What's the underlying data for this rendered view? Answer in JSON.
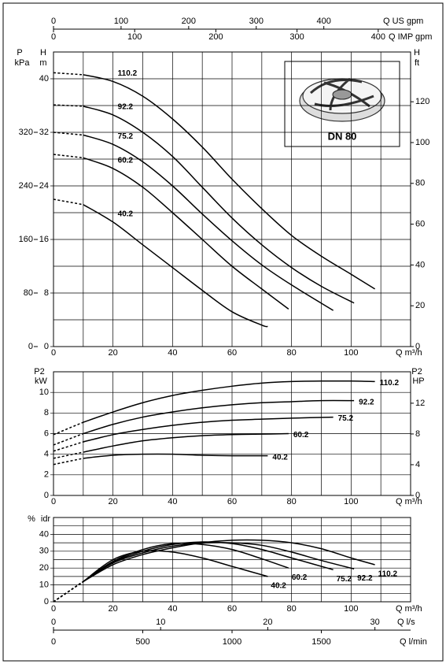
{
  "chart_data": [
    {
      "type": "line",
      "xlabel": "Q m³/h",
      "xlim": [
        0,
        120
      ],
      "xticks": [
        0,
        20,
        40,
        60,
        80,
        100
      ],
      "xminor": [
        10,
        30,
        50,
        70,
        90,
        110
      ],
      "x2label": "Q US gpm",
      "x2lim": [
        0,
        528.4
      ],
      "x2ticks": [
        0,
        100,
        200,
        300,
        400
      ],
      "x3label": "Q IMP gpm",
      "x3lim": [
        0,
        439.9
      ],
      "x3ticks": [
        0,
        100,
        200,
        300,
        400
      ],
      "ylabel": {
        "symbol": "H",
        "unit": "m"
      },
      "ylim": [
        0,
        44
      ],
      "yticks": [
        0,
        8,
        16,
        24,
        32,
        40
      ],
      "yminor": [
        4,
        12,
        20,
        28,
        36
      ],
      "y2label": {
        "symbol": "H",
        "unit": "ft"
      },
      "y2lim": [
        0,
        144.4
      ],
      "y2ticks": [
        0,
        20,
        40,
        60,
        80,
        100,
        120
      ],
      "y3label": {
        "symbol": "P",
        "unit": "kPa"
      },
      "y3lim": [
        0,
        440
      ],
      "y3ticks": [
        0,
        80,
        160,
        240,
        320
      ],
      "dashed_to": 10,
      "color": "#000000",
      "series": [
        {
          "name": "110.2",
          "x": [
            0,
            10,
            20,
            30,
            40,
            50,
            60,
            70,
            80,
            90,
            100,
            108
          ],
          "values": [
            40.9,
            40.6,
            39.6,
            37.4,
            34,
            29.8,
            25,
            20.6,
            16.6,
            13.5,
            10.8,
            8.6
          ]
        },
        {
          "name": "92.2",
          "x": [
            0,
            10,
            20,
            30,
            40,
            50,
            60,
            70,
            80,
            90,
            101
          ],
          "values": [
            36.1,
            35.9,
            34.6,
            32,
            28.4,
            23.8,
            19.2,
            15.2,
            11.8,
            9,
            6.5
          ]
        },
        {
          "name": "75.2",
          "x": [
            0,
            10,
            20,
            30,
            40,
            50,
            60,
            70,
            80,
            94
          ],
          "values": [
            32,
            31.6,
            30.2,
            27.6,
            24,
            19.8,
            15.8,
            12.2,
            9.2,
            5.4
          ]
        },
        {
          "name": "60.2",
          "x": [
            0,
            10,
            20,
            30,
            40,
            50,
            60,
            70,
            79
          ],
          "values": [
            28.7,
            28.2,
            26.6,
            23.8,
            20,
            16,
            12,
            8.6,
            5.6
          ]
        },
        {
          "name": "40.2",
          "x": [
            0,
            10,
            20,
            30,
            40,
            50,
            60,
            70,
            72
          ],
          "values": [
            22,
            21.2,
            18.6,
            15.2,
            11.8,
            8.4,
            5.2,
            3.2,
            3.0
          ]
        }
      ]
    },
    {
      "type": "line",
      "xlabel": "Q m³/h",
      "xlim": [
        0,
        120
      ],
      "xticks": [
        0,
        20,
        40,
        60,
        80,
        100
      ],
      "xminor": [
        10,
        30,
        50,
        70,
        90,
        110
      ],
      "ylabel": {
        "symbol": "P2",
        "unit": "kW"
      },
      "ylim": [
        0,
        12
      ],
      "yticks": [
        0,
        2,
        4,
        6,
        8,
        10
      ],
      "y2label": {
        "symbol": "P2",
        "unit": "HP"
      },
      "y2lim": [
        0,
        16.09
      ],
      "y2ticks": [
        0,
        4,
        8,
        12
      ],
      "dashed_to": 10,
      "color": "#000000",
      "series": [
        {
          "name": "110.2",
          "x": [
            0,
            10,
            20,
            30,
            40,
            50,
            60,
            70,
            80,
            90,
            100,
            108
          ],
          "values": [
            5.9,
            7.1,
            8.1,
            9,
            9.7,
            10.2,
            10.6,
            10.9,
            11.05,
            11.1,
            11.1,
            11.05
          ]
        },
        {
          "name": "92.2",
          "x": [
            0,
            10,
            20,
            30,
            40,
            50,
            60,
            70,
            80,
            90,
            101
          ],
          "values": [
            4.9,
            6,
            6.9,
            7.6,
            8.1,
            8.5,
            8.8,
            9,
            9.1,
            9.2,
            9.2
          ]
        },
        {
          "name": "75.2",
          "x": [
            0,
            10,
            20,
            30,
            40,
            50,
            60,
            70,
            80,
            94
          ],
          "values": [
            4.3,
            5.2,
            5.9,
            6.4,
            6.8,
            7.1,
            7.3,
            7.4,
            7.5,
            7.6
          ]
        },
        {
          "name": "60.2",
          "x": [
            0,
            10,
            20,
            30,
            40,
            50,
            60,
            70,
            79
          ],
          "values": [
            3.6,
            4.2,
            4.8,
            5.3,
            5.6,
            5.8,
            5.9,
            5.95,
            6.0
          ]
        },
        {
          "name": "40.2",
          "x": [
            0,
            10,
            20,
            30,
            40,
            50,
            60,
            72
          ],
          "values": [
            3.0,
            3.6,
            3.9,
            4.0,
            4.0,
            3.9,
            3.85,
            3.85
          ]
        }
      ]
    },
    {
      "type": "line",
      "xlabel": "Q m³/h",
      "xlim": [
        0,
        120
      ],
      "xticks": [
        0,
        20,
        40,
        60,
        80,
        100
      ],
      "xminor": [
        10,
        30,
        50,
        70,
        90,
        110
      ],
      "x2label": "Q l/s",
      "x2lim": [
        0,
        33.33
      ],
      "x2ticks": [
        0,
        10,
        20,
        30
      ],
      "x3label": "Q l/min",
      "x3lim": [
        0,
        2000
      ],
      "x3ticks": [
        0,
        500,
        1000,
        1500
      ],
      "ylabel": {
        "symbol": "%",
        "unit": "idr"
      },
      "ylim": [
        0,
        50
      ],
      "yticks": [
        0,
        10,
        20,
        30,
        40
      ],
      "yminor": [
        5,
        15,
        25,
        35,
        45
      ],
      "dashed_to": 10,
      "color": "#000000",
      "series": [
        {
          "name": "110.2",
          "x": [
            0,
            10,
            20,
            30,
            40,
            50,
            60,
            70,
            80,
            90,
            100,
            108
          ],
          "values": [
            0,
            12,
            22,
            28,
            32,
            35,
            36.5,
            36.5,
            35,
            31.5,
            26,
            22
          ]
        },
        {
          "name": "92.2",
          "x": [
            0,
            10,
            20,
            30,
            40,
            50,
            60,
            70,
            80,
            90,
            101
          ],
          "values": [
            0,
            12,
            23,
            29,
            33,
            34.8,
            35,
            33.5,
            29.5,
            24.5,
            19.5
          ]
        },
        {
          "name": "75.2",
          "x": [
            0,
            10,
            20,
            30,
            40,
            50,
            60,
            70,
            80,
            94
          ],
          "values": [
            0,
            12,
            23.5,
            30,
            34,
            35.5,
            34.5,
            31,
            26,
            19
          ]
        },
        {
          "name": "60.2",
          "x": [
            0,
            10,
            20,
            30,
            40,
            50,
            60,
            70,
            79
          ],
          "values": [
            0,
            12,
            24,
            31,
            34.5,
            34,
            31,
            25.5,
            20
          ]
        },
        {
          "name": "40.2",
          "x": [
            0,
            10,
            20,
            30,
            40,
            50,
            60,
            72
          ],
          "values": [
            0,
            12,
            25,
            30,
            29.5,
            26,
            21,
            15
          ]
        }
      ]
    }
  ],
  "inset": {
    "label": "DN 80"
  }
}
